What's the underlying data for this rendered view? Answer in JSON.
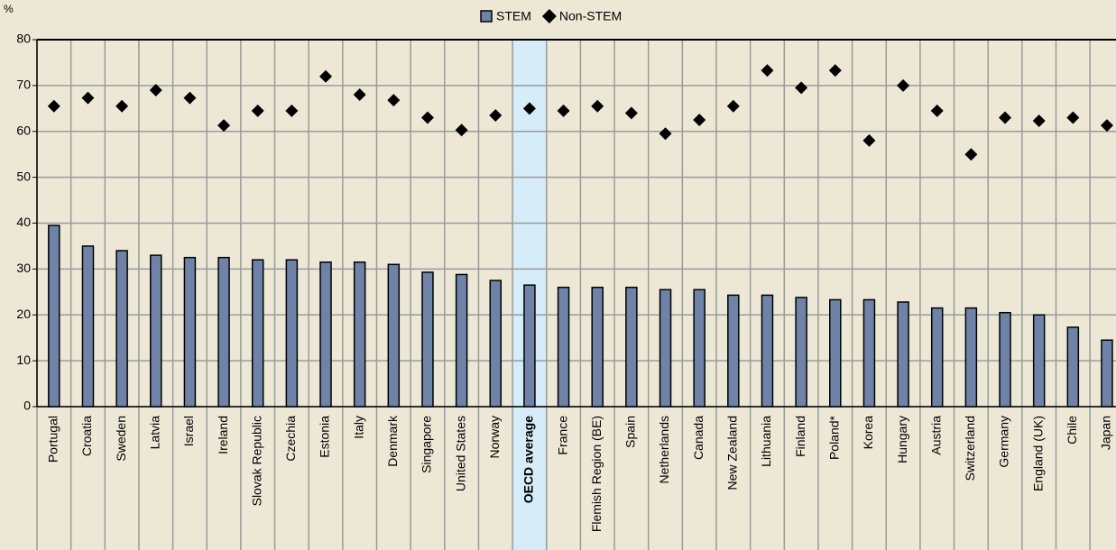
{
  "chart_data": {
    "type": "bar",
    "y_unit": "%",
    "categories": [
      "Portugal",
      "Croatia",
      "Sweden",
      "Latvia",
      "Israel",
      "Ireland",
      "Slovak Republic",
      "Czechia",
      "Estonia",
      "Italy",
      "Denmark",
      "Singapore",
      "United States",
      "Norway",
      "OECD average",
      "France",
      "Flemish Region (BE)",
      "Spain",
      "Netherlands",
      "Canada",
      "New Zealand",
      "Lithuania",
      "Finland",
      "Poland*",
      "Korea",
      "Hungary",
      "Austria",
      "Switzerland",
      "Germany",
      "England (UK)",
      "Chile",
      "Japan"
    ],
    "category_colors": [
      "#000",
      "#000",
      "#000",
      "#000",
      "#000",
      "#000",
      "#000",
      "#000",
      "#000",
      "#000",
      "#000",
      "#000",
      "#000",
      "#000",
      "#000",
      "#000",
      "#1f4e99",
      "#000",
      "#000",
      "#000",
      "#000",
      "#000",
      "#000",
      "#000",
      "#000",
      "#000",
      "#000",
      "#000",
      "#000",
      "#1f4e99",
      "#000",
      "#000"
    ],
    "highlight": "OECD average",
    "highlight_color": "#d6ecf8",
    "series": [
      {
        "name": "STEM",
        "color": "#6f83a8",
        "marker": "bar",
        "values": [
          39.5,
          35,
          34,
          33,
          32.5,
          32.5,
          32,
          32,
          31.5,
          31.5,
          31,
          29.3,
          28.8,
          27.5,
          26.5,
          26,
          26,
          26,
          25.5,
          25.5,
          24.3,
          24.3,
          23.8,
          23.3,
          23.3,
          22.8,
          21.5,
          21.5,
          20.5,
          20,
          17.3,
          14.5
        ]
      },
      {
        "name": "Non-STEM",
        "color": "#000000",
        "marker": "diamond",
        "values": [
          65.5,
          67.3,
          65.5,
          69,
          67.3,
          61.3,
          64.5,
          64.5,
          72,
          68,
          66.8,
          63,
          60.3,
          63.5,
          65,
          64.5,
          65.5,
          64,
          59.5,
          62.5,
          65.5,
          73.3,
          69.5,
          73.3,
          58,
          70,
          64.5,
          55,
          63,
          62.3,
          63,
          61.3
        ]
      }
    ],
    "ylim": [
      0,
      80
    ],
    "yticks": [
      0,
      10,
      20,
      30,
      40,
      50,
      60,
      70,
      80
    ],
    "grid": true
  }
}
